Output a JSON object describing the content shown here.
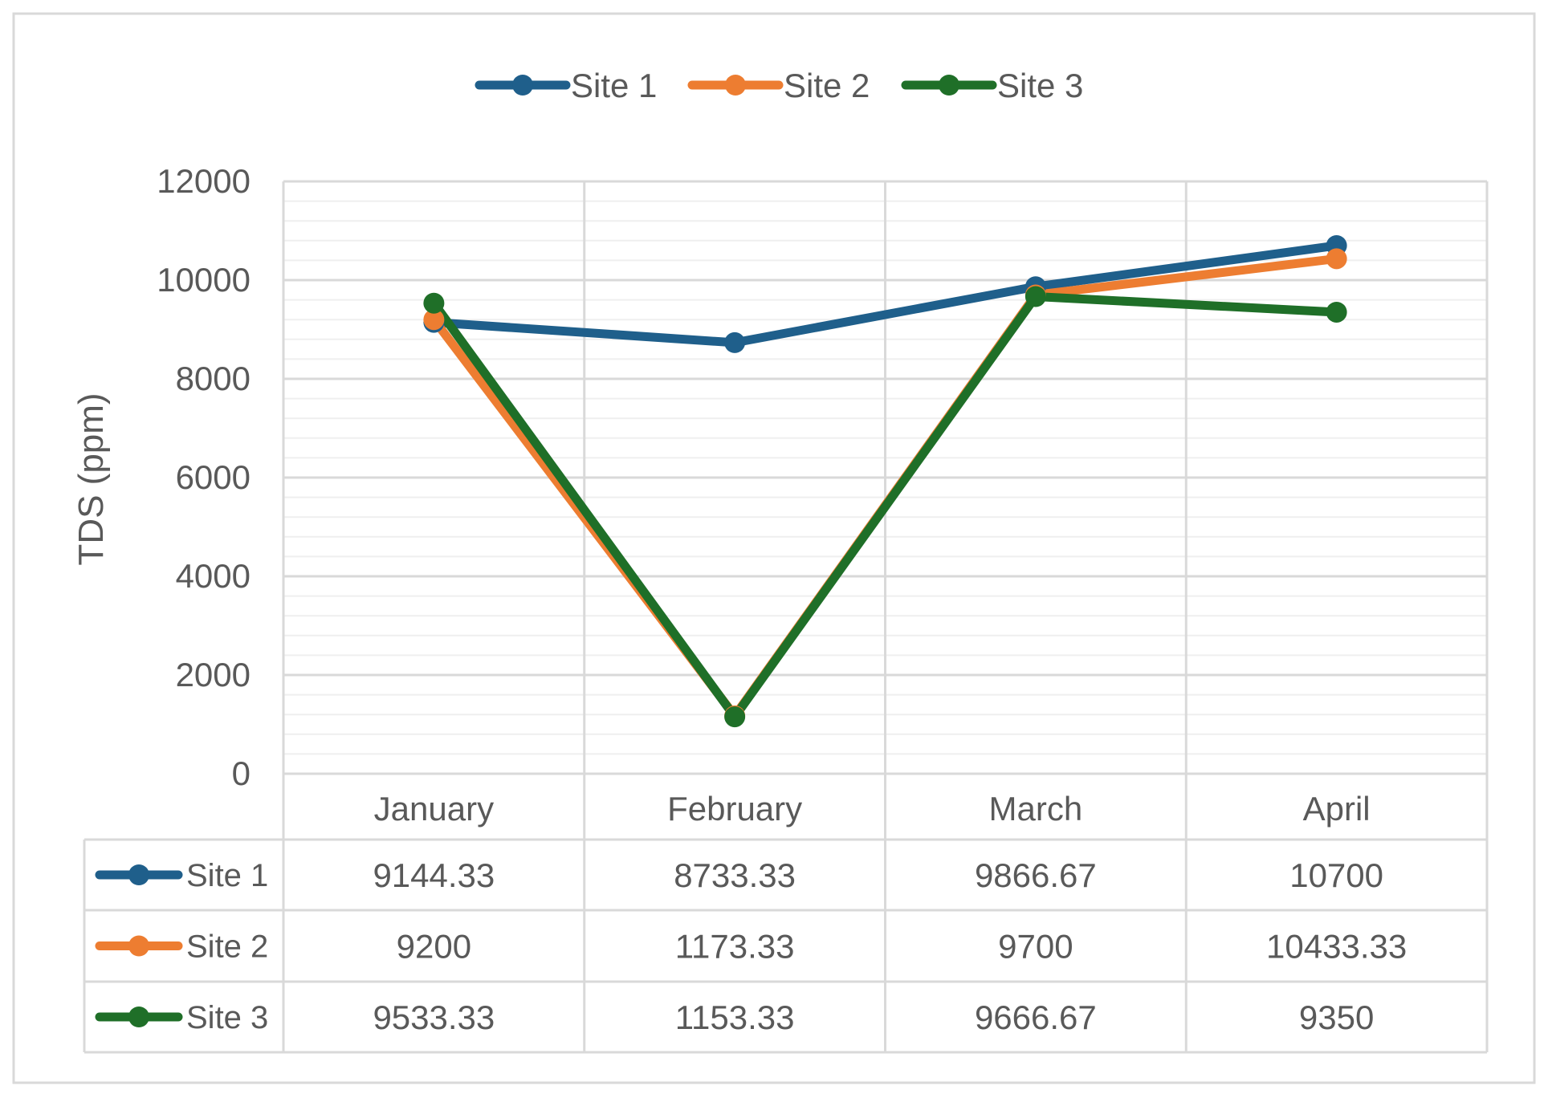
{
  "chart_data": {
    "type": "line",
    "title": "",
    "xlabel": "",
    "ylabel": "TDS (ppm)",
    "categories": [
      "January",
      "February",
      "March",
      "April"
    ],
    "ylim": [
      0,
      12000
    ],
    "yticks": [
      0,
      2000,
      4000,
      6000,
      8000,
      10000,
      12000
    ],
    "minor_gridlines": true,
    "legend_position": "top",
    "data_table": true,
    "series": [
      {
        "name": "Site 1",
        "color": "#1f5f8b",
        "values": [
          9144.33,
          8733.33,
          9866.67,
          10700
        ]
      },
      {
        "name": "Site 2",
        "color": "#ed7d31",
        "values": [
          9200,
          1173.33,
          9700,
          10433.33
        ]
      },
      {
        "name": "Site 3",
        "color": "#1f6f28",
        "values": [
          9533.33,
          1153.33,
          9666.67,
          9350
        ]
      }
    ]
  }
}
